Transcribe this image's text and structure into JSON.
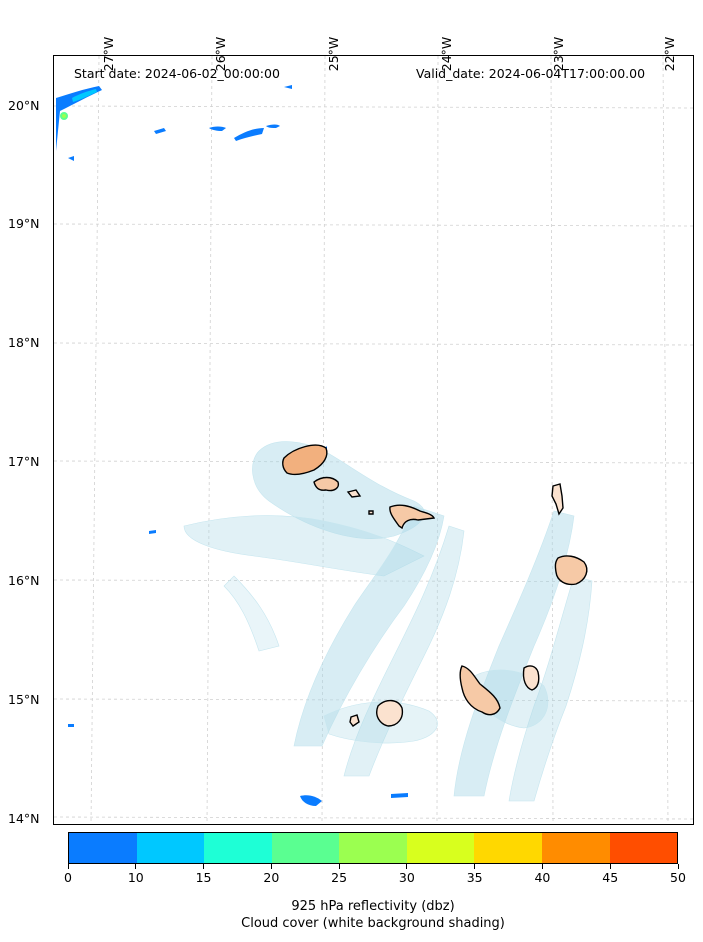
{
  "map": {
    "start_label": "Start date: 2024-06-02_00:00:00",
    "valid_label": "Valid_date: 2024-06-04T17:00:00.00",
    "lon_ticks": [
      "27°W",
      "26°W",
      "25°W",
      "24°W",
      "23°W",
      "22°W"
    ],
    "lat_ticks": [
      "20°N",
      "19°N",
      "18°N",
      "17°N",
      "16°N",
      "15°N",
      "14°N"
    ],
    "gridlines": true,
    "extent": {
      "lon_min": -27.3,
      "lon_max": -21.8,
      "lat_min": 13.95,
      "lat_max": 20.4
    }
  },
  "colorbar": {
    "ticks": [
      "0",
      "10",
      "15",
      "20",
      "25",
      "30",
      "35",
      "40",
      "45",
      "50"
    ],
    "colors": [
      "#0a7cff",
      "#00c8ff",
      "#1effd6",
      "#5aff91",
      "#9bff50",
      "#d8ff1e",
      "#ffd800",
      "#ff8c00",
      "#ff4e00"
    ],
    "label": "925 hPa reflectivity (dbz)",
    "sublabel": "Cloud cover (white background shading)"
  }
}
